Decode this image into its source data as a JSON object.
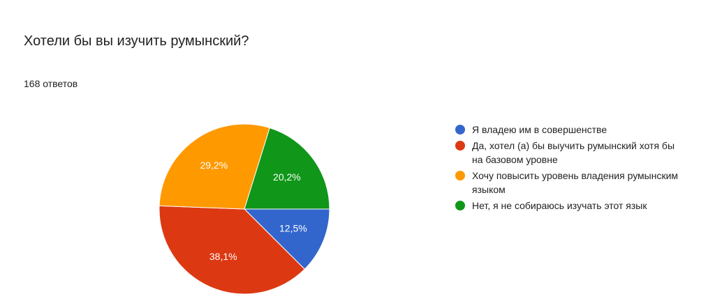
{
  "chart_data": {
    "type": "pie",
    "title": "Хотели бы вы изучить румынский?",
    "subtitle": "168 ответов",
    "categories": [
      "Я владею им в совершенстве",
      "Да, хотел (а) бы выучить румынский хотя бы на базовом уровне",
      "Хочу повысить уровень владения румынским языком",
      "Нет, я не собираюсь изучать этот язык"
    ],
    "values": [
      12.5,
      38.1,
      29.2,
      20.2
    ],
    "value_labels": [
      "12,5%",
      "38,1%",
      "29,2%",
      "20,2%"
    ],
    "colors": [
      "#3366cc",
      "#dc3912",
      "#ff9900",
      "#109618"
    ],
    "legend": "right"
  }
}
